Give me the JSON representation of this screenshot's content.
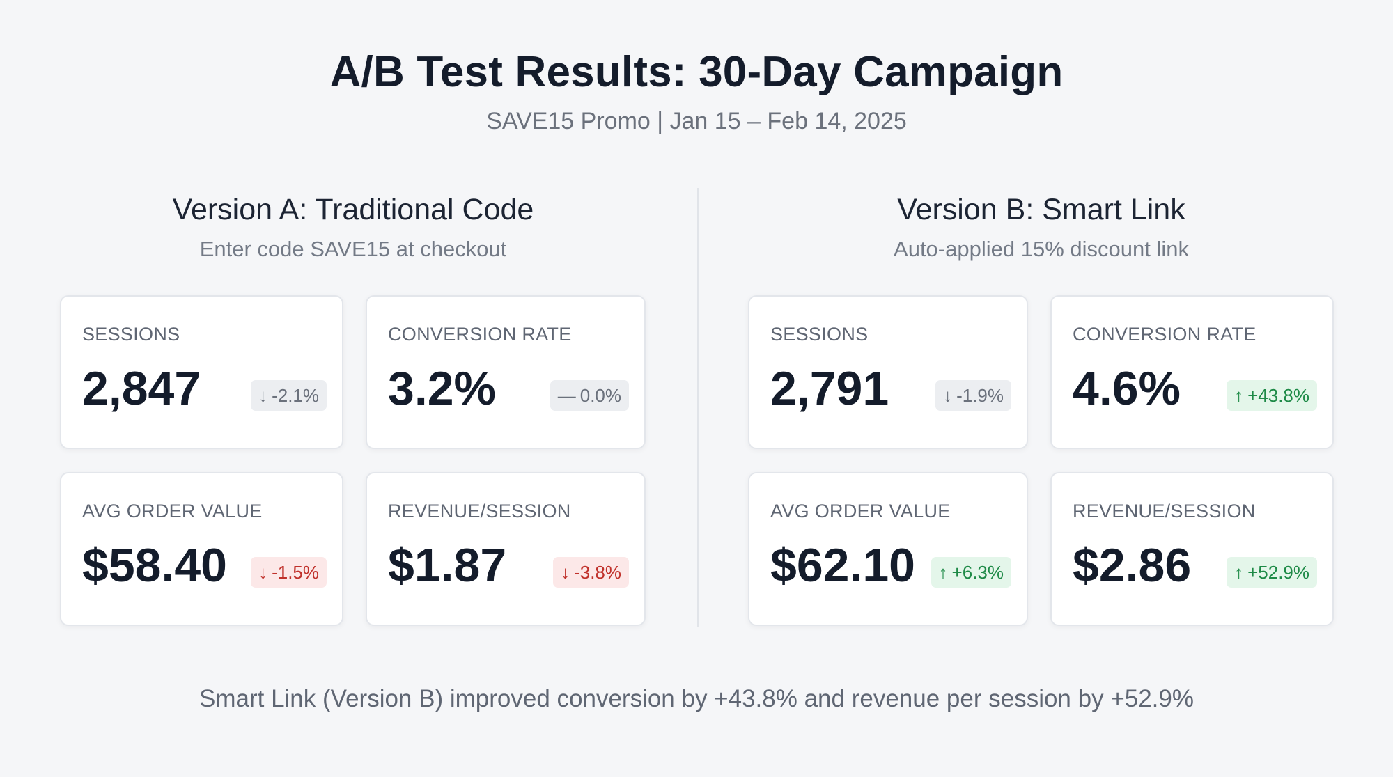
{
  "header": {
    "title": "A/B Test Results: 30-Day Campaign",
    "subtitle": "SAVE15 Promo | Jan 15 – Feb 14, 2025"
  },
  "version_a": {
    "title": "Version A: Traditional Code",
    "subtitle": "Enter code SAVE15 at checkout",
    "metrics": {
      "sessions": {
        "label": "SESSIONS",
        "value": "2,847",
        "change": "-2.1%",
        "arrow": "↓",
        "status": "neutral"
      },
      "conversion": {
        "label": "CONVERSION RATE",
        "value": "3.2%",
        "change": "0.0%",
        "arrow": "—",
        "status": "neutral"
      },
      "aov": {
        "label": "AVG ORDER VALUE",
        "value": "$58.40",
        "change": "-1.5%",
        "arrow": "↓",
        "status": "negative"
      },
      "rps": {
        "label": "REVENUE/SESSION",
        "value": "$1.87",
        "change": "-3.8%",
        "arrow": "↓",
        "status": "negative"
      }
    }
  },
  "version_b": {
    "title": "Version B: Smart Link",
    "subtitle": "Auto-applied 15% discount link",
    "metrics": {
      "sessions": {
        "label": "SESSIONS",
        "value": "2,791",
        "change": "-1.9%",
        "arrow": "↓",
        "status": "neutral"
      },
      "conversion": {
        "label": "CONVERSION RATE",
        "value": "4.6%",
        "change": "+43.8%",
        "arrow": "↑",
        "status": "positive"
      },
      "aov": {
        "label": "AVG ORDER VALUE",
        "value": "$62.10",
        "change": "+6.3%",
        "arrow": "↑",
        "status": "positive"
      },
      "rps": {
        "label": "REVENUE/SESSION",
        "value": "$2.86",
        "change": "+52.9%",
        "arrow": "↑",
        "status": "positive"
      }
    }
  },
  "footer": {
    "summary": "Smart Link (Version B) improved conversion by +43.8% and revenue per session by +52.9%"
  },
  "colors": {
    "positive": "#1e8a47",
    "negative": "#c0312b",
    "neutral": "#6b717c"
  }
}
